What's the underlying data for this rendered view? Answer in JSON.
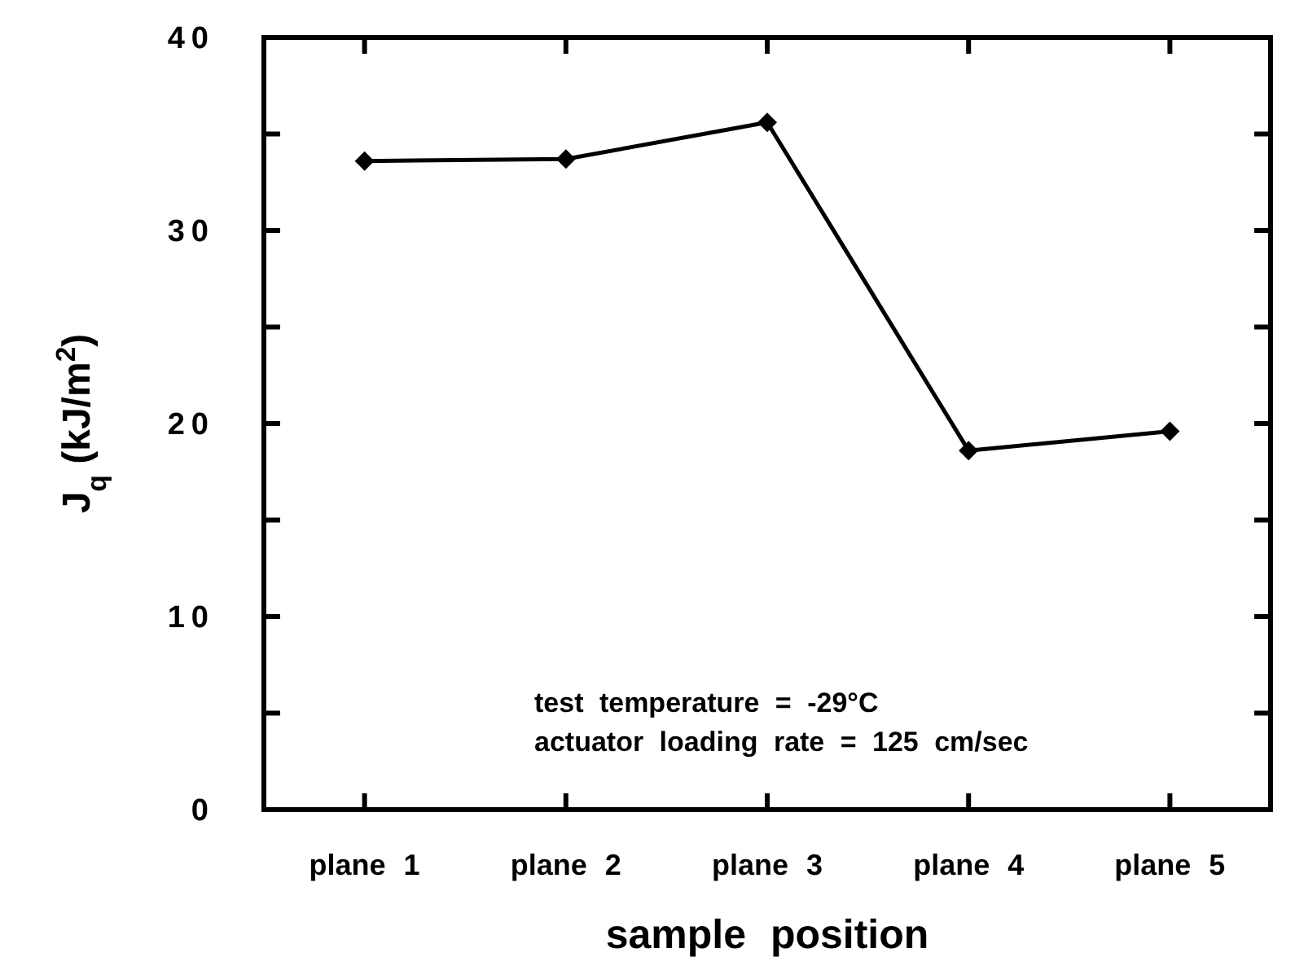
{
  "chart_data": {
    "type": "line",
    "xlabel": "sample position",
    "ylabel": "J$_{q}$ (kJ/m$^{2}$)",
    "categories": [
      "plane 1",
      "plane 2",
      "plane 3",
      "plane 4",
      "plane 5"
    ],
    "series": [
      {
        "color": "#000000",
        "values": [
          33.6,
          33.7,
          35.6,
          18.6,
          19.6
        ]
      }
    ],
    "ylim": [
      0,
      40
    ],
    "yticks": [
      0,
      {
        "value": 5,
        "label": null
      },
      10,
      {
        "value": 15,
        "label": null
      },
      20,
      {
        "value": 25,
        "label": null
      },
      30,
      {
        "value": 35,
        "label": null
      },
      40
    ],
    "marker": "diamond",
    "line_style": "solid",
    "grid": false,
    "annotations": [
      "test temperature = -29°C",
      "actuator loading rate = 125 cm/sec"
    ]
  }
}
